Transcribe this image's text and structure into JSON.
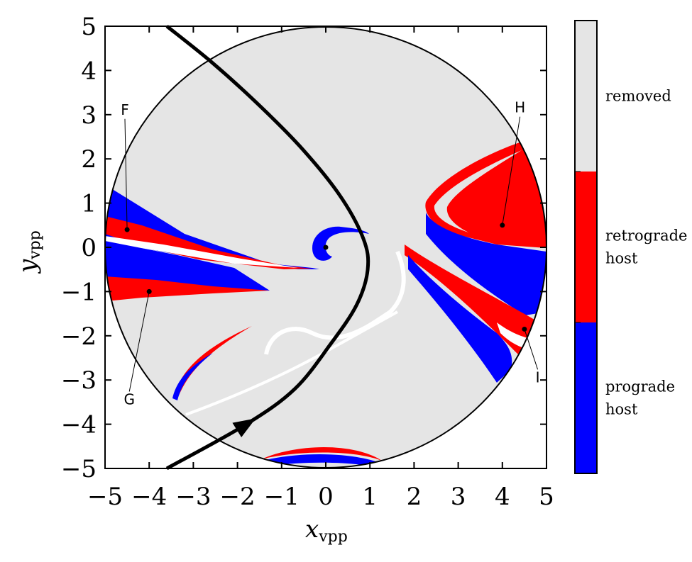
{
  "chart_data": {
    "type": "heatmap",
    "title": "",
    "xlabel": {
      "main": "x",
      "sub": "vpp"
    },
    "ylabel": {
      "main": "y",
      "sub": "vpp"
    },
    "xlim": [
      -5,
      5
    ],
    "ylim": [
      -5,
      5
    ],
    "xticks": [
      -5,
      -4,
      -3,
      -2,
      -1,
      0,
      1,
      2,
      3,
      4,
      5
    ],
    "yticks": [
      -5,
      -4,
      -3,
      -2,
      -1,
      0,
      1,
      2,
      3,
      4,
      5
    ],
    "grid": false,
    "domain_circle": {
      "cx": 0,
      "cy": 0,
      "r": 5
    },
    "colorbar": {
      "position": "right",
      "categories": [
        {
          "label": "removed",
          "color": "#e5e5e5"
        },
        {
          "label": "retrograde host",
          "lines": [
            "retrograde",
            "host"
          ],
          "color": "#ff0000"
        },
        {
          "label": "prograde host",
          "lines": [
            "prograde",
            "host"
          ],
          "color": "#0000ff"
        }
      ]
    },
    "trajectory": {
      "points": [
        [
          -3.6,
          5.0
        ],
        [
          -2.6,
          4.2
        ],
        [
          -1.6,
          3.3
        ],
        [
          -0.6,
          2.3
        ],
        [
          0.3,
          1.2
        ],
        [
          0.85,
          0.2
        ],
        [
          0.95,
          -0.5
        ],
        [
          0.7,
          -1.3
        ],
        [
          0.1,
          -2.2
        ],
        [
          -0.7,
          -3.2
        ],
        [
          -1.8,
          -4.0
        ],
        [
          -3.6,
          -5.0
        ]
      ],
      "arrow_at": [
        -1.8,
        -4.0
      ]
    },
    "points": [
      {
        "label": "F",
        "x": -4.5,
        "y": 0.4,
        "label_x": -4.55,
        "label_y": 3.0
      },
      {
        "label": "G",
        "x": -4.0,
        "y": -1.0,
        "label_x": -4.45,
        "label_y": -3.55
      },
      {
        "label": "H",
        "x": 4.0,
        "y": 0.5,
        "label_x": 4.4,
        "label_y": 3.05
      },
      {
        "label": "I",
        "x": 4.5,
        "y": -1.85,
        "label_x": 4.8,
        "label_y": -3.05
      }
    ],
    "center_point": {
      "x": 0,
      "y": 0
    }
  }
}
